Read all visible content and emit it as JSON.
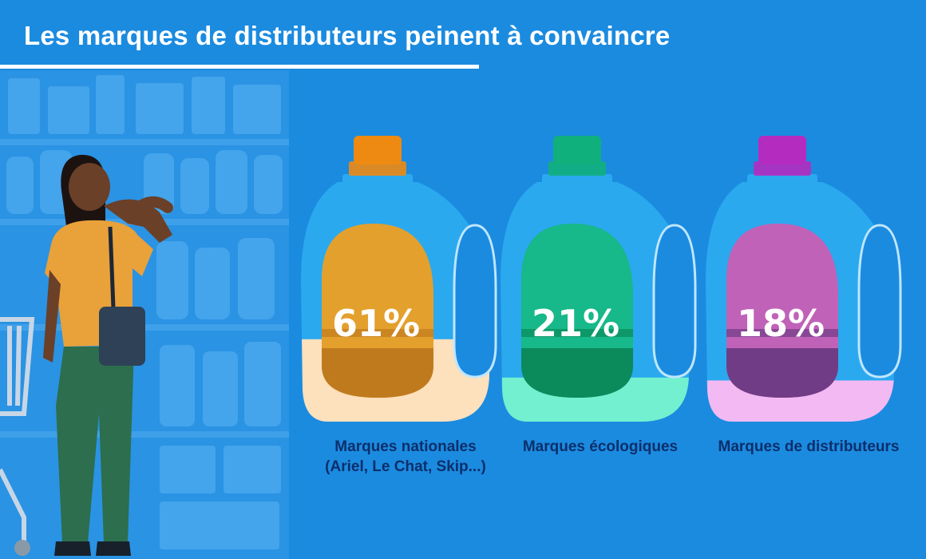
{
  "title": "Les marques de distributeurs peinent à convaincre",
  "colors": {
    "background": "#1b8be0",
    "bottle": "#2aa9ef",
    "title_text": "#ffffff",
    "label_text": "#0c2f6b"
  },
  "chart_data": {
    "type": "bar",
    "categories": [
      "Marques nationales (Ariel, Le Chat, Skip...)",
      "Marques écologiques",
      "Marques de distributeurs"
    ],
    "values": [
      61,
      21,
      18
    ],
    "value_labels": [
      "61%",
      "21%",
      "18%"
    ],
    "unit": "%",
    "ylim": [
      0,
      100
    ],
    "title": "Les marques de distributeurs peinent à convaincre",
    "series_colors": [
      {
        "cap": "#ee8a12",
        "inner": "#e4a02c",
        "inner_dark": "#c07a1e",
        "liquid": "#fde0bc"
      },
      {
        "cap": "#0fb07c",
        "inner": "#17b889",
        "inner_dark": "#0b8a5c",
        "liquid": "#72f0cf"
      },
      {
        "cap": "#b42bc0",
        "inner": "#c062b8",
        "inner_dark": "#713c86",
        "liquid": "#f3b9f3"
      }
    ]
  },
  "labels": [
    {
      "line1": "Marques nationales",
      "line2": "(Ariel, Le Chat, Skip...)"
    },
    {
      "line1": "Marques écologiques",
      "line2": ""
    },
    {
      "line1": "Marques de distributeurs",
      "line2": ""
    }
  ]
}
